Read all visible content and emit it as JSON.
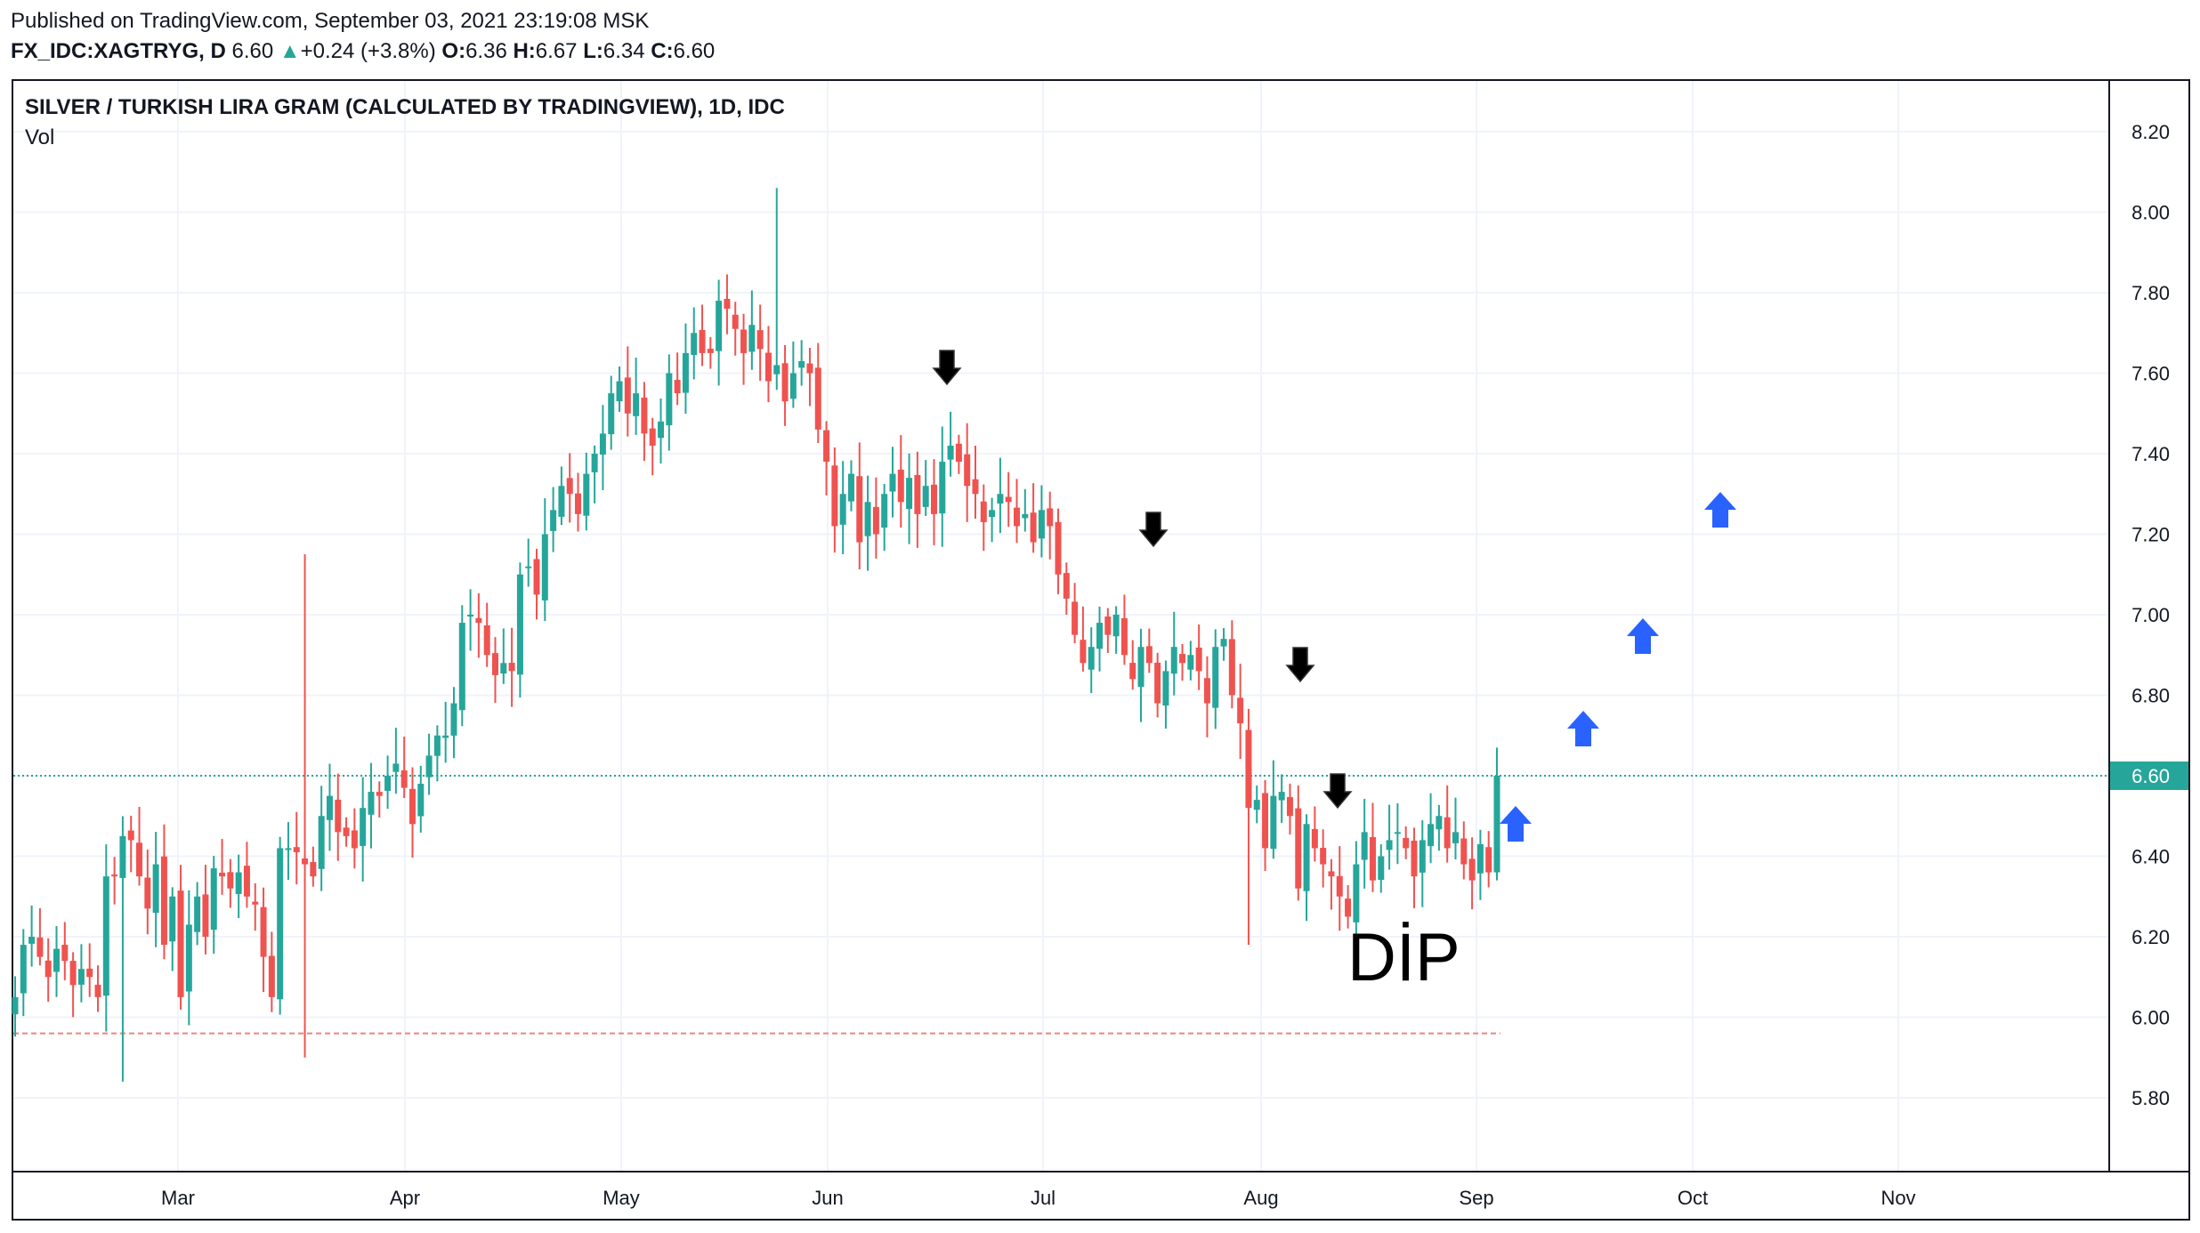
{
  "header": {
    "published": "Published on TradingView.com, September 03, 2021 23:19:08 MSK",
    "symbol": "FX_IDC:XAGTRYG, D",
    "last": "6.60",
    "change_arrow": "▲",
    "change": "+0.24 (+3.8%)",
    "o_label": "O:",
    "o_val": "6.36",
    "h_label": "H:",
    "h_val": "6.67",
    "l_label": "L:",
    "l_val": "6.34",
    "c_label": "C:",
    "c_val": "6.60"
  },
  "chart_title": "SILVER / TURKISH LIRA GRAM (CALCULATED BY TRADINGVIEW), 1D, IDC",
  "volume_label": "Vol",
  "annotation_text": "DİP",
  "colors": {
    "up": "#26a69a",
    "down": "#ef5350",
    "grid": "#f0f3fa",
    "axis_text": "#131722",
    "price_badge": "#26a69a",
    "arrow_down": "#000000",
    "arrow_up": "#2962ff"
  },
  "chart_data": {
    "type": "candlestick",
    "x_axis_labels": [
      "Mar",
      "Apr",
      "May",
      "Jun",
      "Jul",
      "Aug",
      "Sep",
      "Oct",
      "Nov"
    ],
    "y_axis_labels": [
      "8.20",
      "8.00",
      "7.80",
      "7.60",
      "7.40",
      "7.20",
      "7.00",
      "6.80",
      "6.60",
      "6.40",
      "6.20",
      "6.00",
      "5.80"
    ],
    "ylim": [
      5.62,
      8.29
    ],
    "last_price": 6.6,
    "last_price_label": "6.60",
    "support_level": 5.96,
    "closes": [
      6.05,
      6.18,
      6.2,
      6.15,
      6.1,
      6.17,
      6.14,
      6.08,
      6.12,
      6.1,
      6.05,
      6.35,
      6.35,
      6.45,
      6.44,
      6.35,
      6.27,
      6.38,
      6.18,
      6.3,
      6.05,
      6.23,
      6.3,
      6.2,
      6.37,
      6.35,
      6.32,
      6.36,
      6.3,
      6.28,
      6.15,
      6.05,
      6.42,
      6.42,
      6.41,
      6.38,
      6.35,
      6.5,
      6.55,
      6.46,
      6.45,
      6.42,
      6.52,
      6.56,
      6.55,
      6.6,
      6.63,
      6.57,
      6.48,
      6.58,
      6.65,
      6.7,
      6.7,
      6.78,
      6.98,
      7.0,
      6.98,
      6.9,
      6.85,
      6.88,
      6.86,
      7.1,
      7.12,
      7.05,
      7.2,
      7.26,
      7.32,
      7.3,
      7.25,
      7.35,
      7.4,
      7.45,
      7.55,
      7.58,
      7.5,
      7.55,
      7.45,
      7.42,
      7.48,
      7.6,
      7.55,
      7.65,
      7.7,
      7.65,
      7.65,
      7.78,
      7.76,
      7.71,
      7.65,
      7.72,
      7.66,
      7.58,
      7.62,
      7.53,
      7.6,
      7.63,
      7.6,
      7.46,
      7.38,
      7.22,
      7.3,
      7.35,
      7.18,
      7.28,
      7.2,
      7.3,
      7.35,
      7.28,
      7.34,
      7.25,
      7.32,
      7.25,
      7.38,
      7.42,
      7.38,
      7.32,
      7.3,
      7.23,
      7.26,
      7.3,
      7.28,
      7.22,
      7.25,
      7.18,
      7.26,
      7.22,
      7.1,
      7.04,
      6.95,
      6.88,
      6.92,
      6.98,
      6.95,
      7.0,
      6.9,
      6.84,
      6.92,
      6.88,
      6.78,
      6.86,
      6.92,
      6.88,
      6.9,
      6.86,
      6.78,
      6.92,
      6.94,
      6.8,
      6.73,
      6.52,
      6.54,
      6.42,
      6.55,
      6.56,
      6.5,
      6.32,
      6.48,
      6.42,
      6.38,
      6.35,
      6.3,
      6.25,
      6.38,
      6.46,
      6.34,
      6.4,
      6.44,
      6.46,
      6.42,
      6.35,
      6.44,
      6.48,
      6.5,
      6.42,
      6.46,
      6.38,
      6.34,
      6.43,
      6.36,
      6.6
    ]
  }
}
